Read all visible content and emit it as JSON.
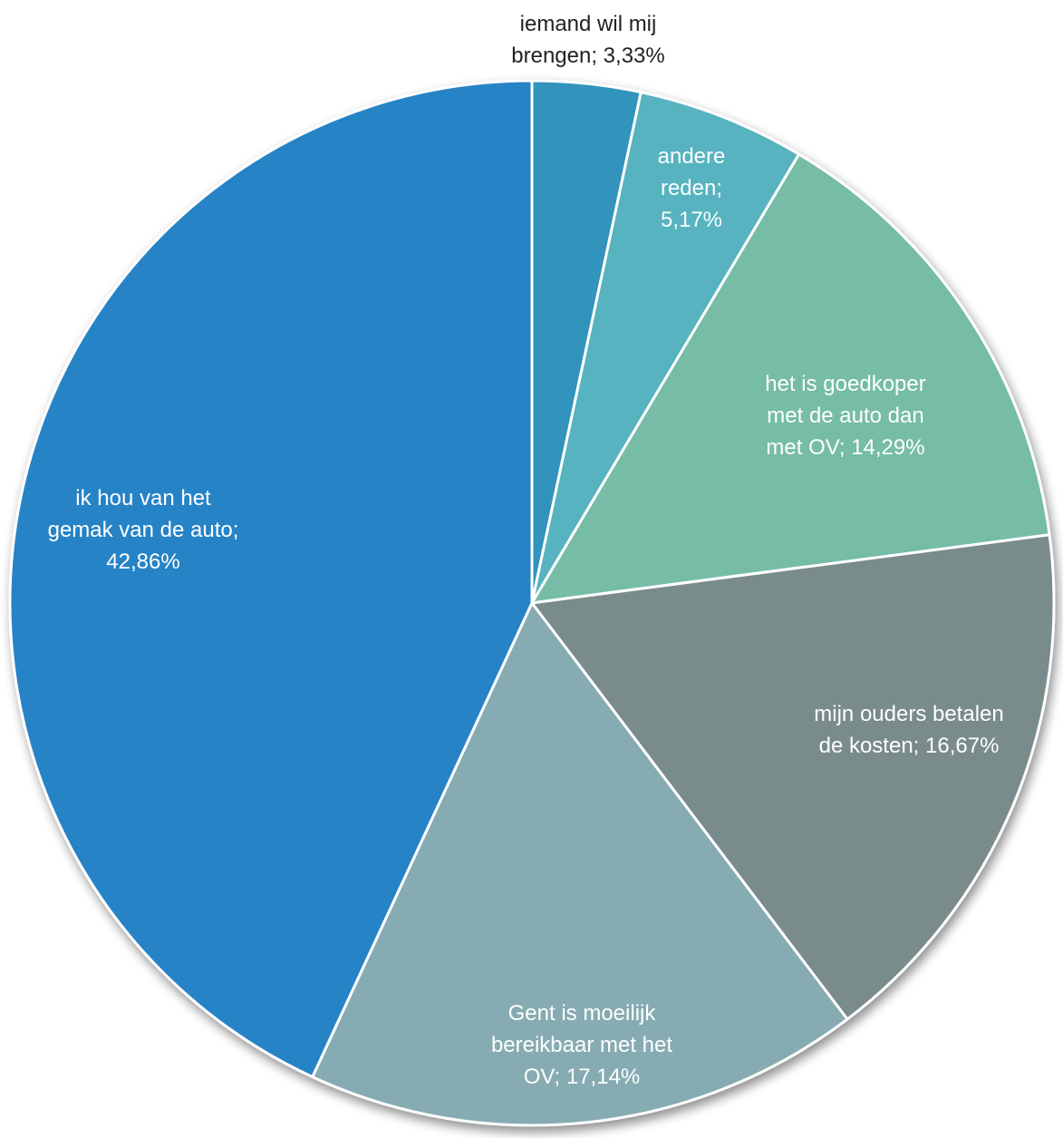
{
  "chart_data": {
    "type": "pie",
    "title": "",
    "start_angle_deg": 0,
    "direction": "clockwise",
    "slices": [
      {
        "label_lines": [
          "iemand wil mij",
          "brengen; 3,33%"
        ],
        "category": "iemand wil mij brengen",
        "value": 3.33,
        "color": "#3393BC",
        "label_color": "#222222",
        "label_outside": true
      },
      {
        "label_lines": [
          "andere",
          "reden;",
          "5,17%"
        ],
        "category": "andere reden",
        "value": 5.17,
        "color": "#56B3BF",
        "label_color": "#ffffff",
        "label_outside": false
      },
      {
        "label_lines": [
          "het is goedkoper",
          "met de auto dan",
          "met OV; 14,29%"
        ],
        "category": "het is goedkoper met de auto dan met OV",
        "value": 14.29,
        "color": "#76BCA6",
        "label_color": "#ffffff",
        "label_outside": false
      },
      {
        "label_lines": [
          "mijn ouders betalen",
          "de kosten; 16,67%"
        ],
        "category": "mijn ouders betalen de kosten",
        "value": 16.67,
        "color": "#7A8B8B",
        "label_color": "#ffffff",
        "label_outside": false
      },
      {
        "label_lines": [
          "Gent is moeilijk",
          "bereikbaar met het",
          "OV; 17,14%"
        ],
        "category": "Gent is moeilijk bereikbaar met het OV",
        "value": 17.14,
        "color": "#86ABB2",
        "label_color": "#ffffff",
        "label_outside": false
      },
      {
        "label_lines": [
          "ik hou van het",
          "gemak van de auto;",
          "42,86%"
        ],
        "category": "ik hou van het gemak van de auto",
        "value": 42.86,
        "color": "#2783C6",
        "label_color": "#ffffff",
        "label_outside": false
      }
    ]
  }
}
